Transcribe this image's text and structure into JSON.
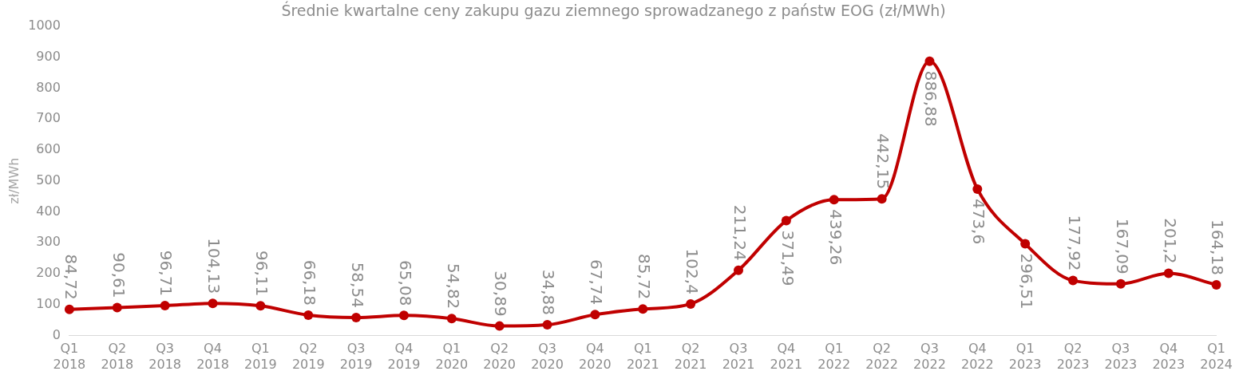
{
  "chart_data": {
    "type": "line",
    "title": "Średnie kwartalne ceny zakupu gazu ziemnego sprowadzanego z państw EOG (zł/MWh)",
    "ylabel": "zł/MWh",
    "categories": [
      "Q1 2018",
      "Q2 2018",
      "Q3 2018",
      "Q4 2018",
      "Q1 2019",
      "Q2 2019",
      "Q3 2019",
      "Q4 2019",
      "Q1 2020",
      "Q2 2020",
      "Q3 2020",
      "Q4 2020",
      "Q1 2021",
      "Q2 2021",
      "Q3 2021",
      "Q4 2021",
      "Q1 2022",
      "Q2 2022",
      "Q3 2022",
      "Q4 2022",
      "Q1 2023",
      "Q2 2023",
      "Q3 2023",
      "Q4 2023",
      "Q1 2024"
    ],
    "series": [
      {
        "color": "#c00000",
        "values": [
          84.72,
          90.61,
          96.71,
          104.13,
          96.11,
          66.18,
          58.54,
          65.08,
          54.82,
          30.89,
          34.88,
          67.74,
          85.72,
          102.4,
          211.24,
          371.49,
          439.26,
          442.15,
          886.88,
          473.6,
          296.51,
          177.92,
          167.09,
          201.2,
          164.18
        ],
        "value_labels": [
          "84,72",
          "90,61",
          "96,71",
          "104,13",
          "96,11",
          "66,18",
          "58,54",
          "65,08",
          "54,82",
          "30,89",
          "34,88",
          "67,74",
          "85,72",
          "102,4",
          "211,24",
          "371,49",
          "439,26",
          "442,15",
          "886,88",
          "473,6",
          "296,51",
          "177,92",
          "167,09",
          "201,2",
          "164,18"
        ]
      }
    ],
    "ylim": [
      0,
      1000
    ],
    "yticks": [
      0,
      100,
      200,
      300,
      400,
      500,
      600,
      700,
      800,
      900,
      1000
    ],
    "grid": false,
    "legend": false,
    "marker": "circle",
    "line_style": "solid"
  }
}
